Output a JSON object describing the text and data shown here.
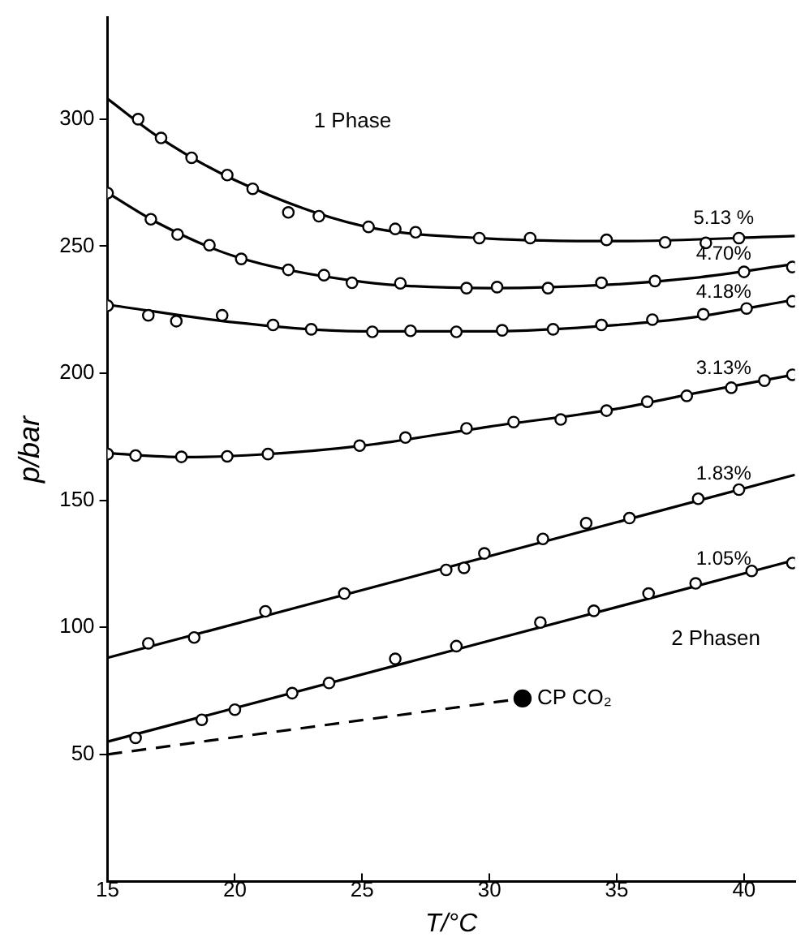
{
  "chart_data": {
    "type": "line",
    "xlabel": "T/°C",
    "ylabel": "p/bar",
    "xlim": [
      15,
      42
    ],
    "ylim": [
      0,
      340
    ],
    "xticks": [
      15,
      20,
      25,
      30,
      35,
      40
    ],
    "yticks": [
      50,
      100,
      150,
      200,
      250,
      300
    ],
    "grid": false,
    "legend": false,
    "annotations": [
      "1 Phase",
      "2 Phasen",
      {
        "text": "CP CO₂",
        "x": 31.3,
        "y": 72
      }
    ],
    "series": [
      {
        "type": "line",
        "name": "5.13 %",
        "color": "#000000",
        "marker": "none",
        "x": [
          15,
          17,
          20,
          25,
          30,
          35,
          42
        ],
        "values": [
          308,
          293,
          276,
          258,
          253,
          252,
          254
        ]
      },
      {
        "type": "scatter",
        "color": "#000000",
        "marker": "circle",
        "x": [
          16.2,
          17.1,
          18.3,
          19.7,
          20.7,
          22.1,
          23.3,
          25.25,
          26.3,
          27.1,
          29.6,
          31.6,
          34.6,
          36.9,
          38.5,
          39.8
        ],
        "values": [
          300,
          292.6,
          284.8,
          278,
          272.6,
          263.3,
          261.8,
          257.6,
          256.8,
          255.5,
          253.2,
          253.2,
          252.5,
          251.5,
          251.3,
          253.2
        ]
      },
      {
        "type": "line",
        "name": "4.70%",
        "color": "#000000",
        "marker": "none",
        "x": [
          15,
          17,
          20,
          25,
          30,
          35,
          38,
          42
        ],
        "values": [
          271,
          259,
          246,
          236,
          233.5,
          235,
          237.5,
          243
        ]
      },
      {
        "type": "scatter",
        "color": "#000000",
        "marker": "circle",
        "x": [
          15,
          16.7,
          17.75,
          19,
          20.25,
          22.1,
          23.5,
          24.6,
          26.5,
          29.1,
          30.3,
          32.3,
          34.4,
          36.5,
          40,
          41.9
        ],
        "values": [
          270.9,
          260.6,
          254.6,
          250.4,
          245,
          240.7,
          238.6,
          235.6,
          235.4,
          233.5,
          233.9,
          233.5,
          235.6,
          236.3,
          239.9,
          241.8
        ]
      },
      {
        "type": "line",
        "name": "4.18%",
        "color": "#000000",
        "marker": "none",
        "x": [
          15,
          20,
          25,
          30,
          35,
          38,
          42
        ],
        "values": [
          227,
          220,
          216.5,
          216.5,
          219,
          222,
          229
        ]
      },
      {
        "type": "scatter",
        "color": "#000000",
        "marker": "circle",
        "x": [
          15,
          16.6,
          17.7,
          19.5,
          21.5,
          23,
          25.4,
          26.9,
          28.7,
          30.5,
          32.5,
          34.4,
          36.4,
          38.4,
          40.1,
          41.9
        ],
        "values": [
          226.6,
          222.8,
          220.5,
          222.8,
          219,
          217.3,
          216.3,
          216.7,
          216.3,
          216.9,
          217.3,
          219,
          221.1,
          223.2,
          225.5,
          228.3
        ]
      },
      {
        "type": "line",
        "name": "3.13%",
        "color": "#000000",
        "marker": "none",
        "x": [
          15,
          18,
          21,
          25,
          30,
          35,
          38,
          42
        ],
        "values": [
          168.5,
          167,
          168,
          171.5,
          179,
          186,
          192,
          199.5
        ]
      },
      {
        "type": "scatter",
        "color": "#000000",
        "marker": "circle",
        "x": [
          15,
          16.1,
          17.9,
          19.7,
          21.3,
          24.9,
          26.7,
          29.1,
          30.95,
          32.8,
          34.6,
          36.2,
          37.75,
          39.5,
          40.8,
          41.9
        ],
        "values": [
          168.2,
          167.6,
          167.1,
          167.3,
          168.2,
          171.5,
          174.7,
          178.3,
          180.8,
          181.8,
          185.3,
          188.8,
          191.1,
          194.3,
          197.1,
          199.4
        ]
      },
      {
        "type": "line",
        "name": "1.83%",
        "color": "#000000",
        "marker": "none",
        "x": [
          15,
          42
        ],
        "values": [
          88,
          160
        ]
      },
      {
        "type": "scatter",
        "color": "#000000",
        "marker": "circle",
        "x": [
          16.6,
          18.4,
          21.2,
          24.3,
          28.3,
          29,
          29.8,
          32.1,
          33.8,
          35.5,
          38.2,
          39.8
        ],
        "values": [
          93.7,
          96,
          106.3,
          113.3,
          122.6,
          123.4,
          129.1,
          134.8,
          141,
          143,
          150.6,
          154.2
        ]
      },
      {
        "type": "line",
        "name": "1.05%",
        "color": "#000000",
        "marker": "none",
        "x": [
          15,
          42
        ],
        "values": [
          55,
          126.5
        ]
      },
      {
        "type": "scatter",
        "color": "#000000",
        "marker": "circle",
        "x": [
          16.1,
          18.7,
          20,
          22.25,
          23.7,
          26.3,
          28.7,
          32,
          34.1,
          36.25,
          38.1,
          40.3,
          41.9
        ],
        "values": [
          56.5,
          63.6,
          67.6,
          74.1,
          78.1,
          87.6,
          92.6,
          101.9,
          106.5,
          113.3,
          117.3,
          122.2,
          125.3
        ]
      },
      {
        "type": "line",
        "color": "#000000",
        "marker": "none",
        "line_style": "dashed",
        "x": [
          15,
          31.3
        ],
        "values": [
          50,
          72
        ]
      },
      {
        "type": "scatter",
        "color": "#000000",
        "marker": "circle",
        "x": [
          31.3
        ],
        "values": [
          72
        ]
      }
    ]
  }
}
